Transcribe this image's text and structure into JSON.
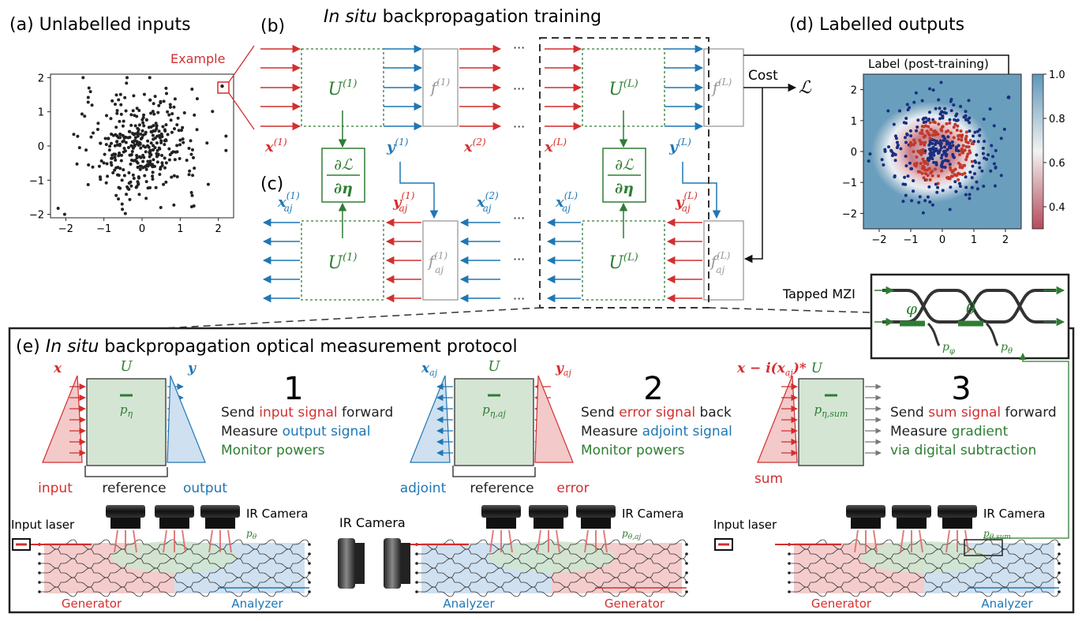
{
  "panel_a": {
    "title": "(a)  Unlabelled inputs",
    "example_label": "Example",
    "x_ticks": [
      "−2",
      "−1",
      "0",
      "1",
      "2"
    ],
    "y_ticks": [
      "2",
      "1",
      "0",
      "−1",
      "−2"
    ]
  },
  "panel_b": {
    "label": "(b)",
    "title_italic": "In situ",
    "title_rest": " backpropagation training",
    "cost_label": "Cost",
    "loss_symbol": "ℒ",
    "u1": "U",
    "u1_sup": "(1)",
    "uL": "U",
    "uL_sup": "(L)",
    "f1": "f",
    "f1_sup": "(1)",
    "fL": "f",
    "fL_sup": "(L)",
    "x1": "x",
    "x1_sup": "(1)",
    "x2": "x",
    "x2_sup": "(2)",
    "xL": "x",
    "xL_sup": "(L)",
    "y1": "y",
    "y1_sup": "(1)",
    "yL": "y",
    "yL_sup": "(L)",
    "grad_num": "∂ℒ",
    "grad_den": "∂η",
    "ellipsis": "···"
  },
  "panel_c": {
    "label": "(c)",
    "xaj1": "x",
    "xaj1_sub": "aj",
    "xaj1_sup": "(1)",
    "yaj1": "y",
    "yaj1_sub": "aj",
    "yaj1_sup": "(1)",
    "xaj2": "x",
    "xaj2_sub": "aj",
    "xaj2_sup": "(2)",
    "xajL": "x",
    "xajL_sub": "aj",
    "xajL_sup": "(L)",
    "yajL": "y",
    "yajL_sub": "aj",
    "yajL_sup": "(L)",
    "faj1": "f",
    "faj1_sub": "aj",
    "faj1_sup": "(1)",
    "fajL": "f",
    "fajL_sub": "aj",
    "fajL_sup": "(L)"
  },
  "panel_d": {
    "title": "(d)    Labelled outputs",
    "plot_title": "Label (post-training)",
    "x_ticks": [
      "−2",
      "−1",
      "0",
      "1",
      "2"
    ],
    "y_ticks": [
      "2",
      "1",
      "0",
      "−1",
      "−2"
    ],
    "colorbar_ticks": [
      "1.0",
      "0.8",
      "0.6",
      "0.4"
    ],
    "colors": {
      "high": "#6a9ebd",
      "mid": "#f4f4f4",
      "low": "#b54a5a"
    }
  },
  "mzi": {
    "label": "Tapped MZI",
    "phi": "φ",
    "theta": "θ",
    "p_phi": "p",
    "p_phi_sub": "φ",
    "p_theta": "p",
    "p_theta_sub": "θ"
  },
  "panel_e": {
    "label_prefix": "(e) ",
    "title_italic": "In situ",
    "title_rest": " backpropagation optical measurement protocol",
    "steps": [
      {
        "num": "1",
        "in_sym": "x",
        "out_sym": "y",
        "u": "U",
        "p": "p",
        "p_sub": "η",
        "lines": [
          [
            {
              "t": "Send ",
              "c": "dark"
            },
            {
              "t": "input signal",
              "c": "red"
            },
            {
              "t": " forward",
              "c": "dark"
            }
          ],
          [
            {
              "t": "Measure ",
              "c": "dark"
            },
            {
              "t": "output signal",
              "c": "blue"
            }
          ],
          [
            {
              "t": "Monitor powers",
              "c": "green"
            }
          ]
        ],
        "left_lbl": "input",
        "mid_lbl": "reference",
        "right_lbl": "output"
      },
      {
        "num": "2",
        "in_sym": "x",
        "in_sub": "aj",
        "out_sym": "y",
        "out_sub": "aj",
        "u": "U",
        "p": "p",
        "p_sub": "η,aj",
        "lines": [
          [
            {
              "t": "Send ",
              "c": "dark"
            },
            {
              "t": "error signal",
              "c": "red"
            },
            {
              "t": " back",
              "c": "dark"
            }
          ],
          [
            {
              "t": "Measure ",
              "c": "dark"
            },
            {
              "t": "adjoint signal",
              "c": "blue"
            }
          ],
          [
            {
              "t": "Monitor powers",
              "c": "green"
            }
          ]
        ],
        "left_lbl": "adjoint",
        "mid_lbl": "reference",
        "right_lbl": "error"
      },
      {
        "num": "3",
        "in_sym": "x − i(x",
        "in_sub": "aj",
        "in_tail": ")* ",
        "u": "U",
        "p": "p",
        "p_sub": "η,sum",
        "lines": [
          [
            {
              "t": "Send ",
              "c": "dark"
            },
            {
              "t": "sum signal",
              "c": "red"
            },
            {
              "t": " forward",
              "c": "dark"
            }
          ],
          [
            {
              "t": "Measure ",
              "c": "dark"
            },
            {
              "t": "gradient",
              "c": "green"
            }
          ],
          [
            {
              "t": "via digital subtraction",
              "c": "green"
            }
          ]
        ],
        "left_lbl": "sum"
      }
    ],
    "chips": [
      {
        "laser": "Input laser",
        "camera": "IR Camera",
        "p": "p",
        "p_sub": "θ",
        "left": "Generator",
        "right": "Analyzer"
      },
      {
        "camera": "IR Camera",
        "p": "p",
        "p_sub": "θ,aj",
        "left": "Analyzer",
        "right": "Generator"
      },
      {
        "laser": "Input laser",
        "camera": "IR Camera",
        "p": "p",
        "p_sub": "θ,sum",
        "left": "Generator",
        "right": "Analyzer"
      }
    ],
    "middle_camera": "IR Camera"
  },
  "colors": {
    "red": "#d32f2f",
    "blue": "#1f77b4",
    "green": "#2e7d32",
    "dark": "#222222",
    "gray": "#999999"
  }
}
